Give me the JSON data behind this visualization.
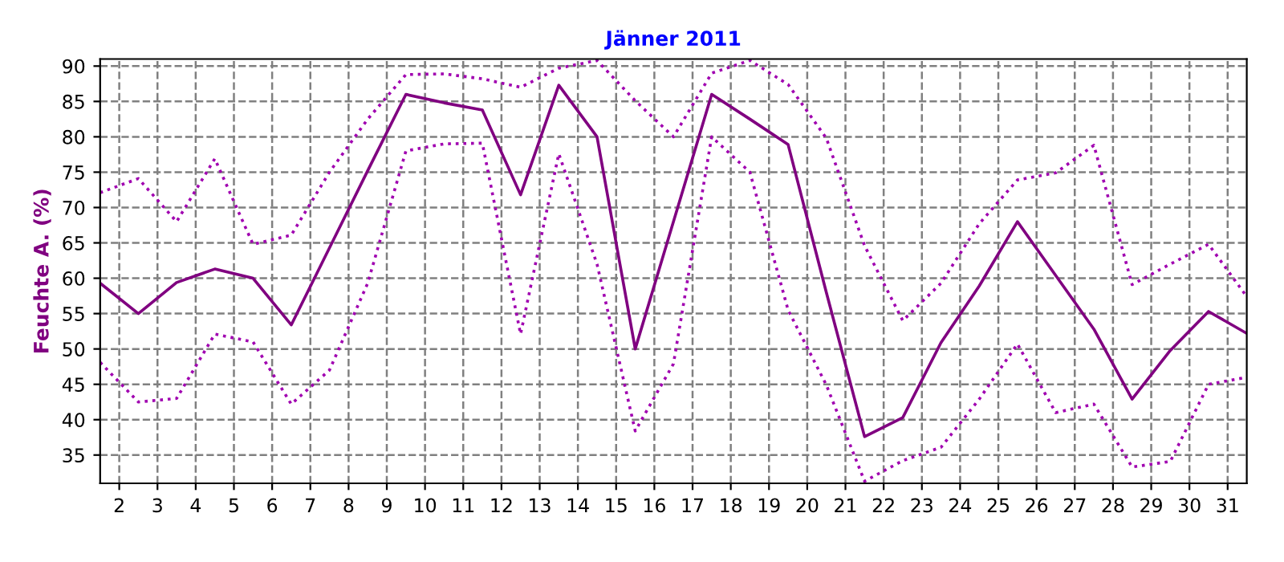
{
  "chart_data": {
    "type": "line",
    "title": "Jänner 2011",
    "ylabel": "Feuchte A. (%)",
    "x": [
      1.5,
      2.5,
      3.5,
      4.5,
      5.5,
      6.5,
      7.5,
      8.5,
      9.5,
      10.5,
      11.5,
      12.5,
      13.5,
      14.5,
      15.5,
      16.5,
      17.5,
      18.5,
      19.5,
      20.5,
      21.5,
      22.5,
      23.5,
      24.5,
      25.5,
      26.5,
      27.5,
      28.5,
      29.5,
      30.5,
      31.5
    ],
    "series": [
      {
        "color": "#a000b0",
        "line_style": "dotted",
        "values": [
          72.1,
          74.1,
          68,
          76.9,
          64.8,
          66.1,
          75,
          82.5,
          88.8,
          88.9,
          88.2,
          87,
          89.7,
          90.8,
          85.1,
          80,
          89,
          90.8,
          87.4,
          79.8,
          64.6,
          54,
          59.3,
          67.7,
          73.9,
          74.9,
          78.8,
          59.1,
          62,
          64.8,
          57.4
        ]
      },
      {
        "color": "#800080",
        "line_style": "solid",
        "values": [
          59.3,
          55,
          59.4,
          61.3,
          60,
          53.4,
          64.3,
          75.2,
          86,
          84.8,
          83.8,
          71.8,
          87.3,
          80,
          50,
          68,
          86,
          82.5,
          78.9,
          58,
          37.6,
          40.3,
          50.9,
          58.9,
          68,
          60.4,
          52.8,
          42.9,
          49.8,
          55.3,
          52.2
        ]
      },
      {
        "color": "#a000b0",
        "line_style": "dotted",
        "values": [
          48.1,
          42.5,
          43,
          52.1,
          51,
          42.2,
          47,
          59.3,
          78,
          79,
          79.1,
          52.1,
          77.6,
          62,
          38.4,
          47.9,
          80,
          75,
          55.5,
          44.9,
          31.3,
          34.2,
          36.1,
          42.9,
          50.7,
          41,
          42.2,
          33.3,
          34.1,
          45,
          46
        ]
      }
    ],
    "xlim": [
      1.5,
      31.5
    ],
    "xticks": [
      2,
      3,
      4,
      5,
      6,
      7,
      8,
      9,
      10,
      11,
      12,
      13,
      14,
      15,
      16,
      17,
      18,
      19,
      20,
      21,
      22,
      23,
      24,
      25,
      26,
      27,
      28,
      29,
      30,
      31
    ],
    "ylim": [
      31,
      91
    ],
    "yticks": [
      35,
      40,
      45,
      50,
      55,
      60,
      65,
      70,
      75,
      80,
      85,
      90
    ],
    "grid": true
  }
}
